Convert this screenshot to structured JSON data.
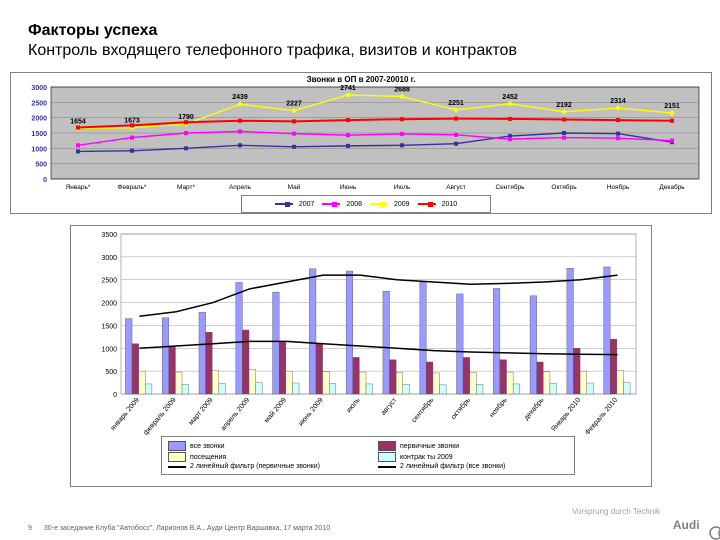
{
  "title": {
    "bold": "Факторы успеха",
    "sub": "Контроль входящего телефонного трафика, визитов и контрактов"
  },
  "footer": {
    "pagenum": "9",
    "text": "30-е заседание Клуба \"Автобосс\", Ларионов В.А.,  Ауди Центр Варшавка, 17 марта 2010"
  },
  "brand": {
    "name": "Audi",
    "tag": "Vorsprung durch Technik"
  },
  "chart1": {
    "title": "Звонки в ОП в 2007-20010 г.",
    "plot_bg": "#c0c0c0",
    "grid_color": "#808080",
    "ylim": [
      0,
      3000
    ],
    "ytick_step": 500,
    "categories": [
      "Январь*",
      "Февраль*",
      "Март*",
      "Апрель",
      "Май",
      "Июнь",
      "Июль",
      "Август",
      "Сентябрь",
      "Октябрь",
      "Ноябрь",
      "Декабрь"
    ],
    "series": [
      {
        "name": "2007",
        "color": "#333399",
        "values": [
          900,
          920,
          1000,
          1100,
          1050,
          1080,
          1100,
          1150,
          1400,
          1500,
          1480,
          1200
        ]
      },
      {
        "name": "2008",
        "color": "#ff00ff",
        "values": [
          1100,
          1350,
          1500,
          1550,
          1480,
          1430,
          1470,
          1440,
          1300,
          1350,
          1330,
          1250
        ]
      },
      {
        "name": "2009",
        "color": "#ffff00",
        "values": [
          1654,
          1673,
          1790,
          2439,
          2227,
          2741,
          2688,
          2251,
          2452,
          2192,
          2314,
          2151
        ],
        "labels": [
          "1654",
          "1673",
          "1790",
          "2439",
          "2227",
          "2741",
          "2688",
          "2251",
          "2452",
          "2192",
          "2314",
          "2151"
        ]
      },
      {
        "name": "2010",
        "color": "#ff0000",
        "values": [
          1680,
          1750,
          1850,
          1900,
          1880,
          1920,
          1950,
          1970,
          1960,
          1940,
          1920,
          1900
        ]
      }
    ],
    "legend_labels": [
      "2007",
      "2008",
      "2009",
      "2010"
    ],
    "legend_colors": [
      "#333399",
      "#ff00ff",
      "#ffff00",
      "#ff0000"
    ]
  },
  "chart2": {
    "plot_bg": "#ffffff",
    "grid_color": "#a0a0a0",
    "ylim": [
      0,
      3500
    ],
    "ytick_step": 500,
    "categories": [
      "январь 2009",
      "февраль 2009",
      "март 2009",
      "апрель 2009",
      "май 2009",
      "июнь 2009",
      "июль",
      "август",
      "сентябрь",
      "октябрь",
      "ноябрь",
      "декабрь",
      "Январь 2010",
      "Февраль 2010"
    ],
    "bar_series": [
      {
        "name": "все звонки",
        "color": "#9999ff",
        "values": [
          1650,
          1670,
          1790,
          2440,
          2230,
          2740,
          2690,
          2250,
          2450,
          2190,
          2310,
          2150,
          2750,
          2780
        ]
      },
      {
        "name": "первичные звонки",
        "color": "#993366",
        "values": [
          1100,
          1050,
          1350,
          1400,
          1150,
          1100,
          800,
          750,
          700,
          800,
          750,
          700,
          1000,
          1200
        ]
      },
      {
        "name": "посещения",
        "color": "#ffffcc",
        "values": [
          500,
          480,
          520,
          540,
          500,
          490,
          480,
          470,
          460,
          470,
          480,
          490,
          500,
          520
        ]
      },
      {
        "name": "контрак ты 2009",
        "color": "#ccffff",
        "values": [
          220,
          210,
          230,
          250,
          240,
          230,
          220,
          210,
          200,
          210,
          220,
          230,
          240,
          250
        ]
      }
    ],
    "line_series": [
      {
        "name": "2 линейный фильтр (первичные звонки)",
        "color": "#000000",
        "values": [
          1000,
          1050,
          1100,
          1150,
          1150,
          1100,
          1050,
          1000,
          950,
          920,
          900,
          880,
          870,
          860
        ]
      },
      {
        "name": "2 линейный фильтр (все звонки)",
        "color": "#000000",
        "values": [
          1700,
          1800,
          2000,
          2300,
          2450,
          2600,
          2600,
          2500,
          2450,
          2400,
          2420,
          2450,
          2500,
          2600
        ]
      }
    ],
    "legend_rows": [
      [
        {
          "type": "box",
          "color": "#9999ff",
          "label": "все звонки"
        },
        {
          "type": "box",
          "color": "#993366",
          "label": "первичные звонки"
        }
      ],
      [
        {
          "type": "box",
          "color": "#ffffcc",
          "label": "посещения"
        },
        {
          "type": "box",
          "color": "#ccffff",
          "label": "контрак ты 2009"
        }
      ],
      [
        {
          "type": "line",
          "color": "#000000",
          "label": "2 линейный фильтр (первичные звонки)"
        },
        {
          "type": "line",
          "color": "#000000",
          "label": "2 линейный фильтр (все звонки)"
        }
      ]
    ]
  }
}
